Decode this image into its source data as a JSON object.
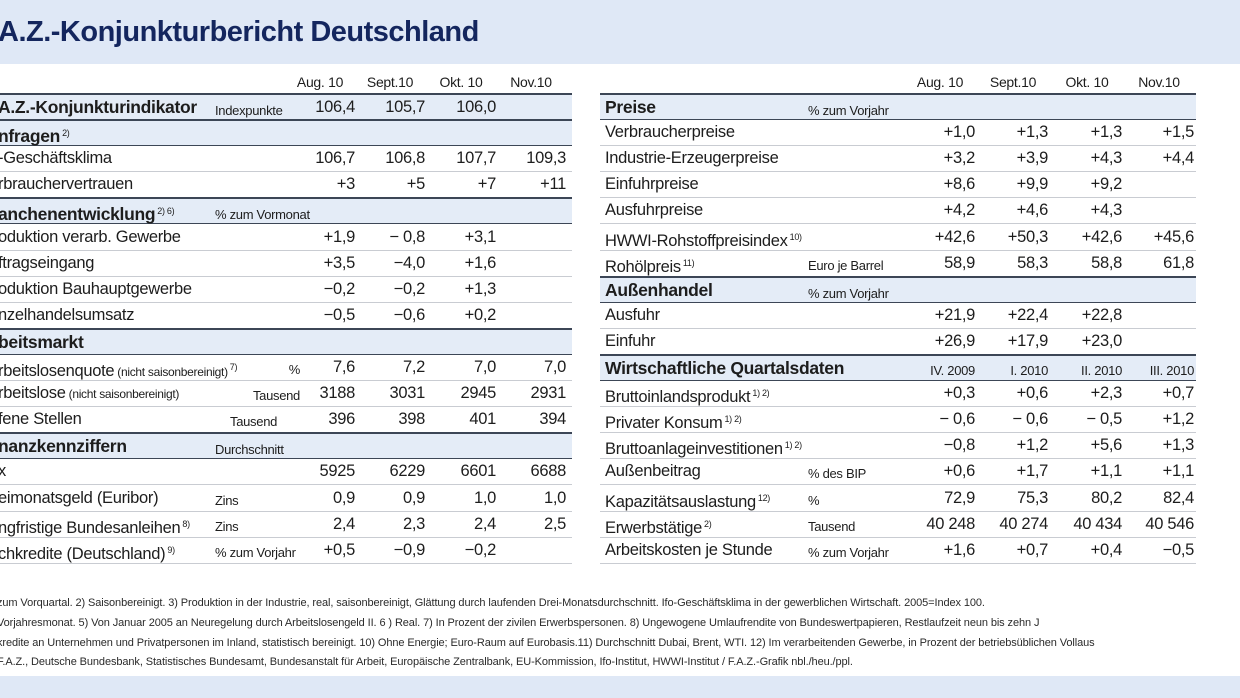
{
  "title": "A.Z.-Konjunkturbericht Deutschland",
  "left_table": {
    "columns": [
      "Aug. 10",
      "Sept.10",
      "Okt. 10",
      "Nov.10"
    ],
    "rows": [
      {
        "type": "headline",
        "label": "A.Z.-Konjunkturindikator",
        "unit": "Indexpunkte",
        "values": [
          "106,4",
          "105,7",
          "106,0",
          ""
        ]
      },
      {
        "type": "section",
        "label": "nfragen",
        "sup": "2)"
      },
      {
        "label": "-Geschäftsklima",
        "values": [
          "106,7",
          "106,8",
          "107,7",
          "109,3"
        ]
      },
      {
        "label": "rbrauchervertrauen",
        "values": [
          "+3",
          "+5",
          "+7",
          "+11"
        ]
      },
      {
        "type": "section",
        "label": "anchenentwicklung",
        "sup": "2) 6)",
        "unit": "% zum Vormonat"
      },
      {
        "label": "oduktion verarb. Gewerbe",
        "values": [
          "+1,9",
          "− 0,8",
          "+3,1",
          ""
        ]
      },
      {
        "label": "ftragseingang",
        "values": [
          "+3,5",
          "−4,0",
          "+1,6",
          ""
        ]
      },
      {
        "label": "oduktion Bauhauptgewerbe",
        "values": [
          "−0,2",
          "−0,2",
          "+1,3",
          ""
        ]
      },
      {
        "label": "nzelhandelsumsatz",
        "values": [
          "−0,5",
          "−0,6",
          "+0,2",
          ""
        ]
      },
      {
        "type": "section",
        "label": "beitsmarkt"
      },
      {
        "label": "rbeitslosenquote",
        "note": "(nicht saisonbereinigt)",
        "sup": "7)",
        "unit": "%",
        "values": [
          "7,6",
          "7,2",
          "7,0",
          "7,0"
        ]
      },
      {
        "label": "rbeitslose",
        "note": "(nicht saisonbereinigt)",
        "unit": "Tausend",
        "values": [
          "3188",
          "3031",
          "2945",
          "2931"
        ]
      },
      {
        "label": "fene Stellen",
        "unit": "Tausend",
        "values": [
          "396",
          "398",
          "401",
          "394"
        ]
      },
      {
        "type": "section",
        "label": "nanzkennziffern",
        "unit": "Durchschnitt"
      },
      {
        "label": "x",
        "values": [
          "5925",
          "6229",
          "6601",
          "6688"
        ]
      },
      {
        "label": "eimonatsgeld (Euribor)",
        "unit": "Zins",
        "values": [
          "0,9",
          "0,9",
          "1,0",
          "1,0"
        ]
      },
      {
        "label": "ngfristige Bundesanleihen",
        "sup": "8)",
        "unit": "Zins",
        "values": [
          "2,4",
          "2,3",
          "2,4",
          "2,5"
        ]
      },
      {
        "label": "chkredite (Deutschland)",
        "sup": "9)",
        "unit": "% zum Vorjahr",
        "values": [
          "+0,5",
          "−0,9",
          "−0,2",
          ""
        ]
      }
    ]
  },
  "right_table": {
    "columns": [
      "Aug. 10",
      "Sept.10",
      "Okt. 10",
      "Nov.10"
    ],
    "rows": [
      {
        "type": "section",
        "label": "Preise",
        "unit": "% zum Vorjahr"
      },
      {
        "label": "Verbraucherpreise",
        "values": [
          "+1,0",
          "+1,3",
          "+1,3",
          "+1,5"
        ]
      },
      {
        "label": "Industrie-Erzeugerpreise",
        "values": [
          "+3,2",
          "+3,9",
          "+4,3",
          "+4,4"
        ]
      },
      {
        "label": "Einfuhrpreise",
        "values": [
          "+8,6",
          "+9,9",
          "+9,2",
          ""
        ]
      },
      {
        "label": "Ausfuhrpreise",
        "values": [
          "+4,2",
          "+4,6",
          "+4,3",
          ""
        ]
      },
      {
        "label": "HWWI-Rohstoffpreisindex",
        "sup": "10)",
        "values": [
          "+42,6",
          "+50,3",
          "+42,6",
          "+45,6"
        ]
      },
      {
        "label": "Rohölpreis",
        "sup": "11)",
        "unit": "Euro je Barrel",
        "values": [
          "58,9",
          "58,3",
          "58,8",
          "61,8"
        ]
      },
      {
        "type": "section",
        "label": "Außenhandel",
        "unit": "% zum Vorjahr"
      },
      {
        "label": "Ausfuhr",
        "values": [
          "+21,9",
          "+22,4",
          "+22,8",
          ""
        ]
      },
      {
        "label": "Einfuhr",
        "values": [
          "+26,9",
          "+17,9",
          "+23,0",
          ""
        ]
      },
      {
        "type": "section",
        "label": "Wirtschaftliche Quartalsdaten",
        "values": [
          "IV. 2009",
          "I. 2010",
          "II. 2010",
          "III. 2010"
        ]
      },
      {
        "label": "Bruttoinlandsprodukt",
        "sup": "1) 2)",
        "values": [
          "+0,3",
          "+0,6",
          "+2,3",
          "+0,7"
        ]
      },
      {
        "label": "Privater Konsum",
        "sup": "1) 2)",
        "values": [
          "− 0,6",
          "− 0,6",
          "− 0,5",
          "+1,2"
        ]
      },
      {
        "label": "Bruttoanlageinvestitionen",
        "sup": "1) 2)",
        "values": [
          "−0,8",
          "+1,2",
          "+5,6",
          "+1,3"
        ]
      },
      {
        "label": "Außenbeitrag",
        "unit": "% des BIP",
        "values": [
          "+0,6",
          "+1,7",
          "+1,1",
          "+1,1"
        ]
      },
      {
        "label": "Kapazitätsauslastung",
        "sup": "12)",
        "unit": "%",
        "values": [
          "72,9",
          "75,3",
          "80,2",
          "82,4"
        ]
      },
      {
        "label": "Erwerbstätige",
        "sup": "2)",
        "unit": "Tausend",
        "values": [
          "40 248",
          "40 274",
          "40 434",
          "40 546"
        ]
      },
      {
        "label": "Arbeitskosten je Stunde",
        "unit": "% zum Vorjahr",
        "values": [
          "+1,6",
          "+0,7",
          "+0,4",
          "−0,5"
        ]
      }
    ]
  },
  "footnotes": [
    "zum Vorquartal.   2) Saisonbereinigt.   3) Produktion in der Industrie, real, saisonbereinigt, Glättung durch laufenden Drei-Monatsdurchschnitt. Ifo-Geschäftsklima in der gewerblichen Wirtschaft. 2005=Index 100.",
    "Vorjahresmonat.   5) Von Januar 2005 an Neuregelung durch Arbeitslosengeld II.   6 ) Real.   7) In Prozent der zivilen Erwerbspersonen.   8) Ungewogene Umlaufrendite von Bundeswertpapieren, Restlaufzeit neun bis zehn J",
    "kredite an Unternehmen und Privatpersonen im Inland, statistisch bereinigt.   10) Ohne Energie; Euro-Raum auf Eurobasis.11) Durchschnitt Dubai, Brent, WTI.   12) Im verarbeitenden Gewerbe, in Prozent der betriebsüblichen Vollaus",
    "F.A.Z., Deutsche Bundesbank, Statistisches Bundesamt, Bundesanstalt für Arbeit, Europäische Zentralbank, EU-Kommission, Ifo-Institut, HWWI-Institut / F.A.Z.-Grafik nbl./heu./ppl."
  ]
}
